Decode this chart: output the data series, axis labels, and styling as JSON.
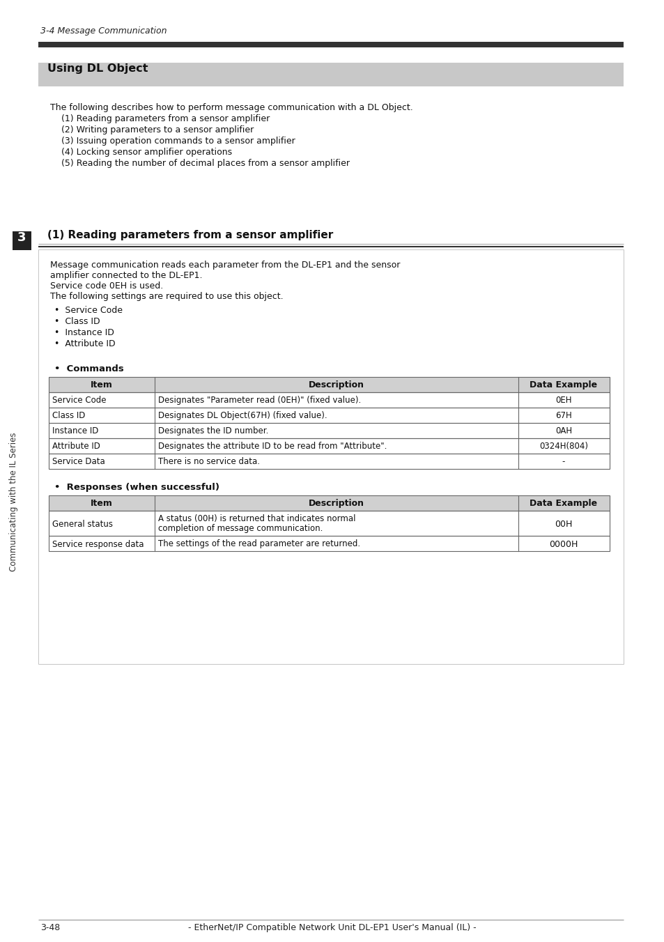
{
  "page_bg": "#ffffff",
  "header_italic": "3-4 Message Communication",
  "thick_bar_color": "#333333",
  "section_bg": "#c8c8c8",
  "section_title": "Using DL Object",
  "intro_text": "The following describes how to perform message communication with a DL Object.",
  "list_items": [
    "    (1) Reading parameters from a sensor amplifier",
    "    (2) Writing parameters to a sensor amplifier",
    "    (3) Issuing operation commands to a sensor amplifier",
    "    (4) Locking sensor amplifier operations",
    "    (5) Reading the number of decimal places from a sensor amplifier"
  ],
  "subsection_title": "(1) Reading parameters from a sensor amplifier",
  "body_text_lines": [
    "Message communication reads each parameter from the DL-EP1 and the sensor",
    "amplifier connected to the DL-EP1.",
    "Service code 0EH is used.",
    "The following settings are required to use this object."
  ],
  "bullet_items": [
    "Service Code",
    "Class ID",
    "Instance ID",
    "Attribute ID"
  ],
  "commands_label": "Commands",
  "commands_table_header": [
    "Item",
    "Description",
    "Data Example"
  ],
  "commands_table_rows": [
    [
      "Service Code",
      "Designates \"Parameter read (0EH)\" (fixed value).",
      "0EH"
    ],
    [
      "Class ID",
      "Designates DL Object(67H) (fixed value).",
      "67H"
    ],
    [
      "Instance ID",
      "Designates the ID number.",
      "0AH"
    ],
    [
      "Attribute ID",
      "Designates the attribute ID to be read from \"Attribute\".",
      "0324H(804)"
    ],
    [
      "Service Data",
      "There is no service data.",
      "-"
    ]
  ],
  "responses_label": "Responses (when successful)",
  "responses_table_header": [
    "Item",
    "Description",
    "Data Example"
  ],
  "responses_table_rows": [
    [
      "General status",
      "A status (00H) is returned that indicates normal\ncompletion of message communication.",
      "00H"
    ],
    [
      "Service response data",
      "The settings of the read parameter are returned.",
      "0000H"
    ]
  ],
  "sidebar_text": "Communicating with the IL Series",
  "sidebar_number": "3",
  "footer_page": "3-48",
  "footer_text": "- EtherNet/IP Compatible Network Unit DL-EP1 User's Manual (IL) -",
  "table_header_bg": "#d0d0d0",
  "table_line_color": "#666666",
  "sidebar_box_color": "#222222"
}
